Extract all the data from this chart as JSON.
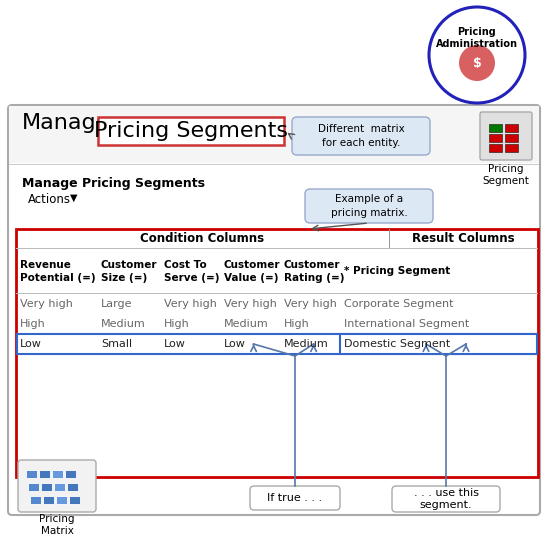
{
  "title_manage": "Manage",
  "title_boxed": "Pricing Segments",
  "callout1_text": "Different  matrix\nfor each entity.",
  "callout2_text": "Example of a\npricing matrix.",
  "actions_label": "Actions",
  "table_header_left": "Condition Columns",
  "table_header_right": "Result Columns",
  "col_headers": [
    "Revenue\nPotential (=)",
    "Customer\nSize (=)",
    "Cost To\nServe (=)",
    "Customer\nValue (=)",
    "Customer\nRating (=)",
    "* Pricing Segment"
  ],
  "rows": [
    [
      "Very high",
      "Large",
      "Very high",
      "Very high",
      "Very high",
      "Corporate Segment"
    ],
    [
      "High",
      "Medium",
      "High",
      "Medium",
      "High",
      "International Segment"
    ],
    [
      "Low",
      "Small",
      "Low",
      "Low",
      "Medium",
      "Domestic Segment"
    ]
  ],
  "if_true_label": "If true . . .",
  "use_segment_label": ". . . use this\nsegment.",
  "pricing_admin_label": "Pricing\nAdministration",
  "pricing_segment_label": "Pricing\nSegment",
  "pricing_matrix_label": "Pricing\nMatrix",
  "subtitle": "Manage Pricing Segments",
  "outer_border_color": "#cc0000",
  "circle_color": "#2222bb",
  "admin_circle_fill": "#d96060",
  "bg_color": "#ffffff",
  "table_border_color": "#cc0000",
  "highlight_row_border": "#3366cc",
  "gray_text": "#666666",
  "callout_fill": "#dde8f5",
  "callout_border": "#99aacc",
  "sep_line_color": "#bbbbbb",
  "icon_green": "#007700",
  "icon_red": "#cc0000",
  "blue_block": "#5588cc",
  "blue_block2": "#4477bb",
  "blue_block3": "#6699dd"
}
